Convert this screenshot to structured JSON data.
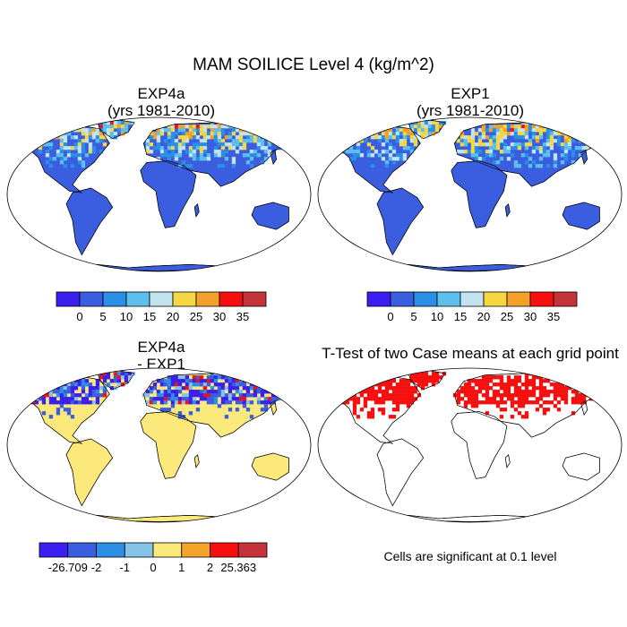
{
  "title": "MAM SOILICE Level 4 (kg/m^2)",
  "panels": [
    {
      "id": "exp4a",
      "title_line1": "EXP4a",
      "title_line2": "(yrs 1981-2010)"
    },
    {
      "id": "exp1",
      "title_line1": "EXP1",
      "title_line2": "(yrs 1981-2010)"
    },
    {
      "id": "diff",
      "title_line1": "EXP4a",
      "title_line2": "- EXP1"
    },
    {
      "id": "ttest",
      "title_line1": "T-Test of two Case means at each grid point",
      "title_line2": ""
    }
  ],
  "colorbar_abs": {
    "colors": [
      "#3a1ff0",
      "#3b5ee0",
      "#2b8fe6",
      "#5cbfee",
      "#c2e4f0",
      "#f5d742",
      "#f3a12a",
      "#f50f0f",
      "#c4333a"
    ],
    "labels": [
      "0",
      "5",
      "10",
      "15",
      "20",
      "25",
      "30",
      "35"
    ]
  },
  "colorbar_diff": {
    "colors": [
      "#3a1ff0",
      "#3b5ee0",
      "#2b8fe6",
      "#86c3e8",
      "#fbe97c",
      "#f5a42b",
      "#f50f0f",
      "#c4333a"
    ],
    "labels": [
      "-26.709",
      "-2",
      "-1",
      "0",
      "1",
      "2",
      "25.363"
    ]
  },
  "footnote": "Cells are significant at 0.1 level",
  "colors": {
    "ocean": "#ffffff",
    "land_abs": "#3b5ee0",
    "land_diff": "#fbe97c",
    "significant": "#f50f0f",
    "coast": "#000000"
  }
}
